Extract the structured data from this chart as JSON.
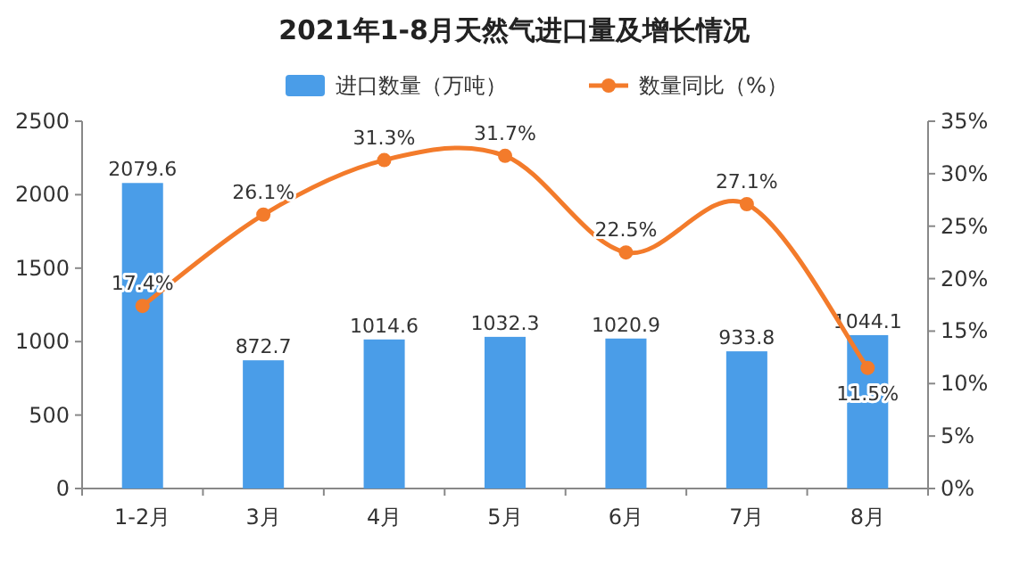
{
  "chart_data": {
    "type": "bar",
    "title": "2021年1-8月天然气进口量及增长情况",
    "categories": [
      "1-2月",
      "3月",
      "4月",
      "5月",
      "6月",
      "7月",
      "8月"
    ],
    "series": [
      {
        "name": "进口数量（万吨）",
        "color": "#4a9de8",
        "values": [
          2079.6,
          872.7,
          1014.6,
          1032.3,
          1020.9,
          933.8,
          1044.1
        ],
        "value_labels": [
          "2079.6",
          "872.7",
          "1014.6",
          "1032.3",
          "1020.9",
          "933.8",
          "1044.1"
        ]
      },
      {
        "name": "数量同比（%）",
        "type": "line",
        "axis": "y2",
        "color": "#f37b2b",
        "values": [
          17.4,
          26.1,
          31.3,
          31.7,
          22.5,
          27.1,
          11.5
        ],
        "value_labels": [
          "17.4%",
          "26.1%",
          "31.3%",
          "31.7%",
          "22.5%",
          "27.1%",
          "11.5%"
        ]
      }
    ],
    "ylim": [
      0,
      2500
    ],
    "yticks": [
      0,
      500,
      1000,
      1500,
      2000,
      2500
    ],
    "y2lim": [
      0,
      35
    ],
    "y2ticks": [
      {
        "value": 0,
        "label": "0%"
      },
      {
        "value": 5,
        "label": "5%"
      },
      {
        "value": 10,
        "label": "10%"
      },
      {
        "value": 15,
        "label": "15%"
      },
      {
        "value": 20,
        "label": "20%"
      },
      {
        "value": 25,
        "label": "25%"
      },
      {
        "value": 30,
        "label": "30%"
      },
      {
        "value": 35,
        "label": "35%"
      }
    ],
    "marker": "circle",
    "legend": "top"
  }
}
